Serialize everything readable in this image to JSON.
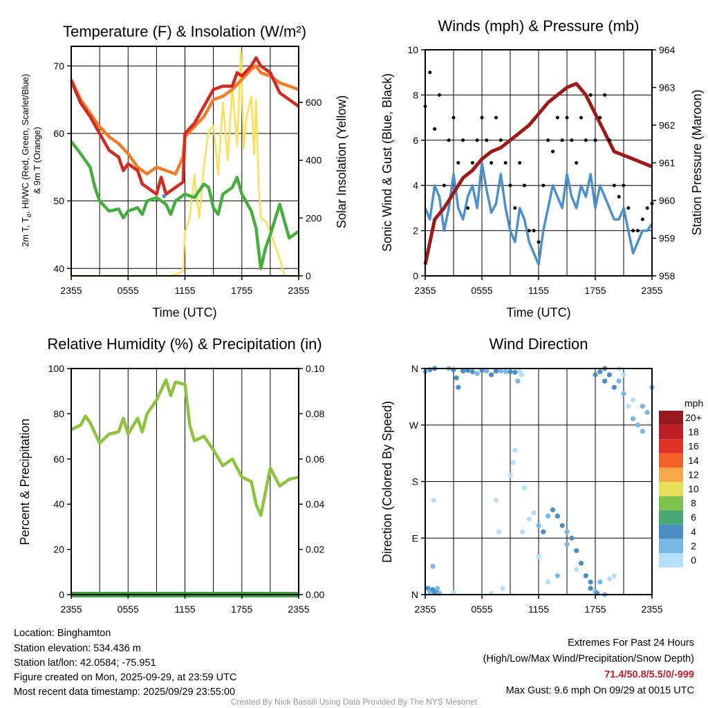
{
  "chart_data": [
    {
      "type": "line",
      "title": "Temperature (F) & Insolation (W/m²)",
      "xlabel": "Time (UTC)",
      "ylabel_line1_a": "2m T, T",
      "ylabel_line1_sub": "d",
      "ylabel_line1_b": ", HI/WC (Red, Green, Scarlet/Blue)",
      "ylabel_line2": "& 9m T (Orange)",
      "ylabel_right": "Solar Insolation (Yellow)",
      "xticks": [
        "2355",
        "0555",
        "1155",
        "1755",
        "2355"
      ],
      "yticks": [
        "40",
        "50",
        "60",
        "70"
      ],
      "yticks_right": [
        "0",
        "200",
        "400",
        "600"
      ],
      "xlim_hours": [
        0,
        24
      ],
      "ylim": [
        38.9,
        72.9
      ],
      "ylim_right": [
        0,
        794
      ],
      "colors": {
        "temp": "#d42a20",
        "dewpoint": "#44b03c",
        "temp9m": "#f47c27",
        "insolation": "#fde04f",
        "windchill": "#4a8fd0"
      },
      "series": [
        {
          "name": "2m T",
          "x": [
            0,
            1,
            2,
            3,
            4,
            5,
            5.5,
            6,
            7,
            7.5,
            8,
            9,
            9.5,
            10,
            11,
            11.8,
            12,
            13,
            14,
            15,
            16,
            17,
            17.5,
            18,
            19,
            19.5,
            20,
            21,
            22,
            23,
            24
          ],
          "values": [
            67.8,
            64.5,
            62.5,
            60,
            57.5,
            56.5,
            54.5,
            55.5,
            54.5,
            52.5,
            52,
            51,
            53.5,
            51,
            52,
            52.8,
            60,
            61.5,
            64,
            66.5,
            67,
            67,
            69,
            68.5,
            70,
            71.2,
            70,
            69,
            66,
            65,
            64
          ]
        },
        {
          "name": "9m T",
          "x": [
            0,
            1,
            2,
            3,
            4,
            5,
            6,
            7,
            8,
            9,
            10,
            11,
            11.8,
            12,
            13,
            14,
            15,
            16,
            17,
            18,
            19,
            19.5,
            20,
            21,
            22,
            23,
            24
          ],
          "values": [
            68,
            65,
            63,
            61,
            59.5,
            58.5,
            57,
            55,
            54,
            55,
            54.5,
            54,
            56.5,
            59.5,
            61,
            62.5,
            65,
            65.5,
            66.5,
            68,
            69.5,
            70,
            69,
            68.5,
            67.5,
            67,
            66.5
          ]
        },
        {
          "name": "Td",
          "x": [
            0,
            1,
            2,
            2.5,
            3,
            4,
            5,
            5.5,
            6,
            7,
            7.5,
            8,
            9,
            10,
            10.5,
            11,
            12,
            13,
            14,
            14.5,
            15,
            15.5,
            16,
            17,
            17.5,
            18,
            19,
            19.5,
            20,
            20.5,
            21,
            22,
            22.5,
            23,
            24
          ],
          "values": [
            58.8,
            57,
            55,
            52,
            50,
            48.5,
            48.8,
            47.5,
            48.5,
            49,
            48,
            50,
            50.5,
            49.5,
            48,
            50,
            51,
            50.5,
            52.5,
            52,
            49,
            48,
            51,
            52,
            53.5,
            51,
            48.5,
            46,
            40,
            43,
            45,
            49.5,
            47,
            44.5,
            45.5
          ]
        },
        {
          "name": "HI/WC",
          "x": [
            9.8
          ],
          "values": [
            50.7
          ]
        },
        {
          "name": "Insolation",
          "axis": "right",
          "x": [
            0,
            10.5,
            11,
            11.8,
            12,
            12.5,
            13,
            13.5,
            14,
            14.5,
            15,
            15.5,
            16,
            16.5,
            17,
            17.5,
            17.9,
            18.2,
            18.5,
            19,
            19.3,
            19.5,
            19.8,
            20,
            20.5,
            21,
            22,
            22.5,
            24
          ],
          "values": [
            0,
            0,
            5,
            15,
            150,
            200,
            350,
            200,
            380,
            500,
            520,
            350,
            600,
            400,
            650,
            450,
            780,
            440,
            550,
            620,
            420,
            610,
            300,
            200,
            190,
            150,
            60,
            0,
            0
          ]
        }
      ]
    },
    {
      "type": "line",
      "title": "Winds (mph) & Pressure (mb)",
      "xlabel": "Time (UTC)",
      "ylabel": "Sonic Wind & Gust (Blue, Black)",
      "ylabel_right": "Station Pressure (Maroon)",
      "xticks": [
        "2355",
        "0555",
        "1155",
        "1755",
        "2355"
      ],
      "yticks": [
        "0",
        "2",
        "4",
        "6",
        "8",
        "10"
      ],
      "yticks_right": [
        "958",
        "959",
        "960",
        "961",
        "962",
        "963",
        "964"
      ],
      "ylim": [
        0,
        10
      ],
      "ylim_right": [
        958,
        964
      ],
      "colors": {
        "wind": "#4a90d0",
        "gust": "#000000",
        "pressure": "#a01818"
      },
      "wind_step_hours": 0.5,
      "wind": [
        3,
        2.5,
        4,
        3.5,
        2,
        3,
        4.5,
        3,
        2.5,
        3.5,
        4,
        3,
        5,
        3.8,
        2.8,
        3.2,
        4.5,
        3,
        2,
        1.5,
        3,
        2.5,
        1.5,
        1,
        0.5,
        2,
        3,
        4,
        3.5,
        3,
        4.5,
        3.5,
        3,
        4,
        3.5,
        4.5,
        3,
        4,
        3.5,
        3,
        2.5,
        2.5,
        3,
        2,
        1,
        1.5,
        2,
        2,
        2.3
      ],
      "gust": [
        7.5,
        9,
        6.5,
        8,
        4,
        6,
        7,
        5,
        6,
        3,
        5,
        6,
        7,
        6,
        5,
        7,
        6,
        5,
        4,
        3,
        5,
        4,
        2,
        2,
        1.5,
        4,
        6,
        5.5,
        7,
        6,
        7,
        6,
        5,
        7,
        6,
        8,
        6,
        7,
        8,
        6,
        4,
        3.5,
        4,
        3,
        2,
        2,
        2.5,
        3,
        3.2
      ],
      "pressure_x": [
        0,
        1,
        2,
        3,
        4,
        5,
        6,
        7,
        8,
        9,
        10,
        11,
        12,
        13,
        14,
        15,
        16,
        17,
        18,
        19,
        20,
        21,
        22,
        23,
        24
      ],
      "pressure": [
        958.3,
        959.5,
        959.8,
        960.2,
        960.6,
        960.8,
        961.1,
        961.3,
        961.4,
        961.6,
        961.8,
        962.0,
        962.3,
        962.6,
        962.8,
        963.0,
        963.1,
        962.8,
        962.3,
        961.8,
        961.3,
        961.2,
        961.1,
        961.0,
        960.9
      ]
    },
    {
      "type": "line",
      "title": "Relative Humidity (%) & Precipitation (in)",
      "ylabel": "Percent & Precipitation",
      "xticks": [
        "2355",
        "0555",
        "1155",
        "1755",
        "2355"
      ],
      "yticks": [
        "0",
        "20",
        "40",
        "60",
        "80",
        "100"
      ],
      "yticks_right": [
        "0.00",
        "0.02",
        "0.04",
        "0.06",
        "0.08",
        "0.10"
      ],
      "ylim": [
        0,
        100
      ],
      "ylim_right": [
        0,
        0.1
      ],
      "colors": {
        "rh": "#8cc43c",
        "precip": "#3ca03c"
      },
      "rh_x": [
        0,
        1,
        1.5,
        2,
        3,
        4,
        5,
        5.5,
        6,
        7,
        7.5,
        8,
        9,
        10,
        10.5,
        11,
        12,
        12.5,
        13,
        14,
        15,
        16,
        17,
        18,
        19,
        19.5,
        20,
        21,
        22,
        23,
        24
      ],
      "rh": [
        73,
        75,
        79,
        76,
        67,
        71,
        72,
        78,
        71,
        78,
        72,
        80,
        86,
        95,
        88,
        94,
        93,
        75,
        68,
        70,
        64,
        57,
        60,
        52,
        50,
        40,
        35,
        56,
        48,
        51,
        52
      ],
      "precip": 0
    },
    {
      "type": "scatter",
      "title": "Wind Direction",
      "ylabel": "Direction (Colored By Speed)",
      "xticks": [
        "2355",
        "0555",
        "1155",
        "1755",
        "2355"
      ],
      "yticks": [
        "N",
        "E",
        "S",
        "W",
        "N"
      ],
      "legend_title": "mph",
      "legend": [
        "20+",
        "18",
        "16",
        "14",
        "12",
        "10",
        "8",
        "6",
        "4",
        "2",
        "0"
      ],
      "legend_colors": [
        "#961a1e",
        "#be1e26",
        "#e03028",
        "#f26228",
        "#f8a846",
        "#e8e05a",
        "#7cc24c",
        "#46a872",
        "#4a8ec6",
        "#7ab8e4",
        "#b6e0f8"
      ],
      "points_hour_dir_speed": [
        [
          0,
          355,
          3
        ],
        [
          0.5,
          358,
          5
        ],
        [
          1,
          360,
          4
        ],
        [
          0.3,
          10,
          4
        ],
        [
          0.5,
          5,
          3
        ],
        [
          0.8,
          8,
          5
        ],
        [
          1,
          3,
          4
        ],
        [
          1.2,
          6,
          5
        ],
        [
          1.5,
          2,
          3
        ],
        [
          1.3,
          10,
          2
        ],
        [
          0.8,
          45,
          2
        ],
        [
          0.9,
          150,
          1
        ],
        [
          2.5,
          360,
          2
        ],
        [
          3,
          358,
          4
        ],
        [
          3.3,
          345,
          4
        ],
        [
          3.5,
          330,
          4
        ],
        [
          4,
          356,
          4
        ],
        [
          4.5,
          357,
          4
        ],
        [
          5,
          355,
          4
        ],
        [
          5.5,
          352,
          3
        ],
        [
          6,
          357,
          4
        ],
        [
          6.5,
          356,
          3
        ],
        [
          7,
          350,
          4
        ],
        [
          7.5,
          356,
          4
        ],
        [
          8,
          356,
          3
        ],
        [
          8.5,
          355,
          3
        ],
        [
          9,
          355,
          4
        ],
        [
          9.5,
          354,
          4
        ],
        [
          10,
          355,
          1
        ],
        [
          9.8,
          340,
          2
        ],
        [
          10.2,
          350,
          1
        ],
        [
          3,
          3,
          1
        ],
        [
          7,
          2,
          1
        ],
        [
          7.5,
          150,
          1
        ],
        [
          7.8,
          100,
          1
        ],
        [
          9,
          190,
          1
        ],
        [
          9.3,
          210,
          1
        ],
        [
          9.5,
          230,
          1
        ],
        [
          8.2,
          10,
          1
        ],
        [
          10.5,
          170,
          1
        ],
        [
          10.3,
          100,
          1
        ],
        [
          11,
          120,
          1
        ],
        [
          11.5,
          130,
          1
        ],
        [
          12,
          110,
          3
        ],
        [
          12.5,
          100,
          4
        ],
        [
          13,
          125,
          3
        ],
        [
          13.5,
          135,
          4
        ],
        [
          14,
          125,
          4
        ],
        [
          14.5,
          110,
          4
        ],
        [
          15,
          100,
          3
        ],
        [
          15.5,
          90,
          4
        ],
        [
          16,
          70,
          4
        ],
        [
          16.5,
          50,
          4
        ],
        [
          17,
          30,
          4
        ],
        [
          17.5,
          20,
          4
        ],
        [
          18,
          5,
          3
        ],
        [
          18.5,
          20,
          2
        ],
        [
          19,
          0,
          2
        ],
        [
          19.5,
          25,
          1
        ],
        [
          20,
          30,
          1
        ],
        [
          12,
          60,
          1
        ],
        [
          13,
          20,
          1
        ],
        [
          14,
          30,
          2
        ],
        [
          15,
          80,
          2
        ],
        [
          16,
          40,
          1
        ],
        [
          17.5,
          10,
          5
        ],
        [
          18.2,
          2,
          4
        ],
        [
          18,
          350,
          5
        ],
        [
          18.5,
          355,
          4
        ],
        [
          19,
          340,
          5
        ],
        [
          19.5,
          350,
          4
        ],
        [
          19,
          360,
          4
        ],
        [
          20,
          330,
          4
        ],
        [
          20.5,
          340,
          3
        ],
        [
          21,
          320,
          2
        ],
        [
          21.5,
          300,
          1
        ],
        [
          22,
          280,
          2
        ],
        [
          22.5,
          270,
          3
        ],
        [
          23,
          260,
          2
        ],
        [
          23.5,
          290,
          2
        ],
        [
          24,
          330,
          3
        ],
        [
          21,
          350,
          1
        ],
        [
          22,
          310,
          1
        ],
        [
          23,
          300,
          2
        ],
        [
          20.5,
          360,
          1
        ]
      ]
    }
  ],
  "info": {
    "location": "Location: Binghamton",
    "elevation": "Station elevation: 534.436 m",
    "latlon": "Station lat/lon: 42.0584; -75.951",
    "created": "Figure created on Mon, 2025-09-29, at 23:59 UTC",
    "recent": "Most recent data timestamp: 2025/09/29 23:55:00",
    "extremes_title": "Extremes For Past 24 Hours",
    "extremes_sub": "(High/Low/Max Wind/Precipitation/Snow Depth)",
    "extremes_values": "71.4/50.8/5.5/0/-999",
    "max_gust": "Max Gust: 9.6 mph On 09/29 at 0015 UTC",
    "credit": "Created By Nick Bassill Using Data Provided By The NYS Mesonet"
  }
}
